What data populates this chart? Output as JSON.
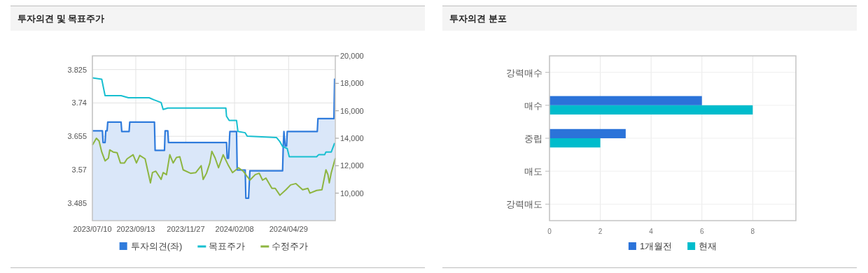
{
  "chart_data": [
    {
      "type": "line",
      "title": "투자의견 및 목표주가",
      "xlim": [
        "2023-07-10",
        "2024-07-08"
      ],
      "xticks": [
        {
          "value": "2023-07-10",
          "label": "2023/07/10"
        },
        {
          "value": "2023-09-13",
          "label": "2023/09/13"
        },
        {
          "value": "2023-11-27",
          "label": "2023/11/27"
        },
        {
          "value": "2024-02-08",
          "label": "2024/02/08"
        },
        {
          "value": "2024-04-29",
          "label": "2024/04/29"
        }
      ],
      "ylim": [
        3.44,
        3.86
      ],
      "yticks": [
        3.485,
        3.57,
        3.655,
        3.74,
        3.825
      ],
      "y2lim": [
        8000,
        20000
      ],
      "y2ticks": [
        {
          "value": 10000,
          "label": "10,000"
        },
        {
          "value": 12000,
          "label": "12,000"
        },
        {
          "value": 14000,
          "label": "14,000"
        },
        {
          "value": 16000,
          "label": "16,000"
        },
        {
          "value": 18000,
          "label": "18,000"
        },
        {
          "value": 20000,
          "label": "20,000"
        }
      ],
      "grid": true,
      "legend": "bottom",
      "series": [
        {
          "name": "투자의견(좌)",
          "type": "area",
          "color": "#2f7bdc",
          "x": [
            "2023-07-10",
            "2023-07-25",
            "2023-07-26",
            "2023-07-29",
            "2023-07-30",
            "2023-08-01",
            "2023-08-02",
            "2023-08-22",
            "2023-08-23",
            "2023-09-03",
            "2023-09-04",
            "2023-10-11",
            "2023-10-12",
            "2023-10-26",
            "2023-10-27",
            "2023-10-31",
            "2023-11-01",
            "2024-01-27",
            "2024-01-28",
            "2024-01-30",
            "2024-02-01",
            "2024-02-11",
            "2024-02-12",
            "2024-02-24",
            "2024-02-25",
            "2024-02-29",
            "2024-03-02",
            "2024-04-20",
            "2024-04-21",
            "2024-04-22",
            "2024-04-24",
            "2024-04-26",
            "2024-04-27",
            "2024-06-11",
            "2024-06-12",
            "2024-07-06",
            "2024-07-07"
          ],
          "values": [
            3.669,
            3.669,
            3.639,
            3.639,
            3.669,
            3.669,
            3.691,
            3.691,
            3.667,
            3.667,
            3.691,
            3.691,
            3.619,
            3.619,
            3.669,
            3.669,
            3.639,
            3.639,
            3.599,
            3.599,
            3.667,
            3.667,
            3.569,
            3.569,
            3.497,
            3.497,
            3.567,
            3.567,
            3.63,
            3.667,
            3.63,
            3.63,
            3.667,
            3.667,
            3.7,
            3.7,
            3.802
          ]
        },
        {
          "name": "목표주가",
          "type": "line",
          "axis": "y2",
          "color": "#17bfd0",
          "x": [
            "2023-07-10",
            "2023-07-24",
            "2023-07-29",
            "2023-08-22",
            "2023-09-02",
            "2023-10-03",
            "2023-10-10",
            "2023-10-21",
            "2023-10-24",
            "2023-10-31",
            "2024-01-26",
            "2024-01-27",
            "2024-01-31",
            "2024-02-11",
            "2024-02-13",
            "2024-02-24",
            "2024-02-27",
            "2024-04-11",
            "2024-04-16",
            "2024-04-20",
            "2024-04-27",
            "2024-04-30",
            "2024-06-10",
            "2024-06-13",
            "2024-06-22",
            "2024-06-24",
            "2024-07-02",
            "2024-07-07"
          ],
          "values": [
            18400,
            18300,
            17100,
            17100,
            16950,
            16950,
            16800,
            16600,
            16100,
            16200,
            16200,
            15600,
            15300,
            15300,
            14500,
            14400,
            14150,
            14050,
            13750,
            13400,
            13250,
            12650,
            12650,
            12800,
            12800,
            13000,
            13000,
            13650
          ]
        },
        {
          "name": "수정주가",
          "type": "line",
          "axis": "y2",
          "color": "#8db540",
          "x": [
            "2023-07-10",
            "2023-07-16",
            "2023-07-20",
            "2023-07-24",
            "2023-07-29",
            "2023-08-03",
            "2023-08-05",
            "2023-08-10",
            "2023-08-16",
            "2023-08-21",
            "2023-08-27",
            "2023-08-31",
            "2023-09-09",
            "2023-09-14",
            "2023-09-19",
            "2023-09-27",
            "2023-10-05",
            "2023-10-08",
            "2023-10-13",
            "2023-10-21",
            "2023-10-24",
            "2023-10-29",
            "2023-11-03",
            "2023-11-08",
            "2023-11-13",
            "2023-11-18",
            "2023-11-23",
            "2023-12-04",
            "2023-12-12",
            "2023-12-20",
            "2023-12-23",
            "2023-12-28",
            "2024-01-02",
            "2024-01-05",
            "2024-01-10",
            "2024-01-15",
            "2024-01-22",
            "2024-01-30",
            "2024-02-05",
            "2024-02-14",
            "2024-02-21",
            "2024-03-02",
            "2024-03-10",
            "2024-03-16",
            "2024-03-21",
            "2024-03-26",
            "2024-04-04",
            "2024-04-09",
            "2024-04-16",
            "2024-04-25",
            "2024-05-02",
            "2024-05-10",
            "2024-05-20",
            "2024-05-28",
            "2024-05-31",
            "2024-06-10",
            "2024-06-18",
            "2024-06-24",
            "2024-06-27",
            "2024-06-29",
            "2024-07-02",
            "2024-07-06",
            "2024-07-08"
          ],
          "values": [
            13500,
            14000,
            13800,
            13000,
            12350,
            12550,
            13150,
            13000,
            12950,
            12200,
            12200,
            12500,
            12800,
            12200,
            12750,
            12500,
            10750,
            11500,
            11600,
            11000,
            11500,
            11350,
            12800,
            12200,
            12600,
            12650,
            11700,
            11450,
            11500,
            12000,
            11000,
            11450,
            12200,
            13050,
            12550,
            11850,
            12800,
            12000,
            11500,
            11850,
            11600,
            10950,
            11350,
            11450,
            10950,
            11100,
            10350,
            10350,
            9850,
            10250,
            10600,
            10700,
            10250,
            10350,
            10000,
            10200,
            10250,
            11700,
            11350,
            10750,
            11500,
            12200,
            12550
          ]
        }
      ]
    },
    {
      "type": "bar",
      "orientation": "horizontal",
      "title": "투자의견 분포",
      "categories": [
        "강력매수",
        "매수",
        "중립",
        "매도",
        "강력매도"
      ],
      "xlim": [
        0,
        9.7
      ],
      "xticks": [
        0,
        2,
        4,
        6,
        8
      ],
      "grid": true,
      "legend": "bottom",
      "series": [
        {
          "name": "1개월전",
          "color": "#2b73d9",
          "values": [
            0,
            6,
            3,
            0,
            0
          ]
        },
        {
          "name": "현재",
          "color": "#00bccc",
          "values": [
            0,
            8,
            2,
            0,
            0
          ]
        }
      ]
    }
  ]
}
